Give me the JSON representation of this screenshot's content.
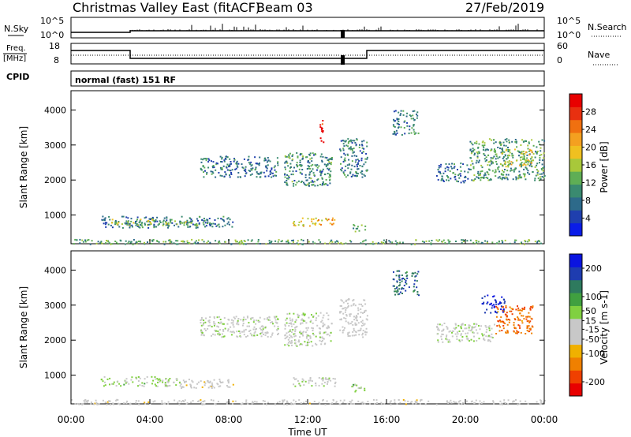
{
  "header": {
    "station": "Christmas Valley East (fitACF)",
    "beam": "Beam 03",
    "date": "27/Feb/2019"
  },
  "sky_panel": {
    "left_label": "N.Sky",
    "right_label": "N.Search",
    "tick_top": "10^5",
    "tick_bottom": "10^0"
  },
  "freq_panel": {
    "left_label_1": "Freq.",
    "left_label_2": "[MHz]",
    "right_label": "Nave",
    "left_ticks": [
      "18",
      "8"
    ],
    "right_ticks": [
      "60",
      "0"
    ]
  },
  "cpid": {
    "label": "CPID",
    "mode": "normal (fast) 151 RF"
  },
  "colors": {
    "power": [
      "#0a1ce8",
      "#1f3fae",
      "#2d6a8a",
      "#3a8a70",
      "#5fae55",
      "#a8c83a",
      "#f0c020",
      "#f4a020",
      "#f07010",
      "#e83010",
      "#e80000"
    ],
    "velocity": [
      "#e80000",
      "#f04000",
      "#f08000",
      "#f0b000",
      "#c8c8c8",
      "#c8c8c8",
      "#80d040",
      "#40a040",
      "#2e7a5e",
      "#1e3cb0",
      "#0a14e0"
    ]
  },
  "chart_data": [
    {
      "type": "heatmap",
      "name": "power",
      "ylabel": "Slant Range [km]",
      "xlim": [
        0,
        24
      ],
      "ylim": [
        180,
        4550
      ],
      "yticks": [
        1000,
        2000,
        3000,
        4000
      ],
      "colorbar": {
        "label": "Power [dB]",
        "range": [
          0,
          32
        ],
        "tick_values": [
          4,
          8,
          12,
          16,
          20,
          24,
          28
        ],
        "tick_labels": [
          "4",
          "8",
          "12",
          "16",
          "20",
          "24",
          "28"
        ]
      },
      "regions": [
        {
          "t0": 1.5,
          "t1": 8.2,
          "r0": 650,
          "r1": 980,
          "v": 8
        },
        {
          "t0": 2.0,
          "t1": 6.5,
          "r0": 720,
          "r1": 900,
          "v": 14
        },
        {
          "t0": 11.2,
          "t1": 13.4,
          "r0": 700,
          "r1": 950,
          "v": 20
        },
        {
          "t0": 14.2,
          "t1": 14.9,
          "r0": 550,
          "r1": 750,
          "v": 10
        },
        {
          "t0": 6.5,
          "t1": 10.5,
          "r0": 2100,
          "r1": 2700,
          "v": 8
        },
        {
          "t0": 10.8,
          "t1": 13.2,
          "r0": 1850,
          "r1": 2800,
          "v": 10
        },
        {
          "t0": 13.6,
          "t1": 15.0,
          "r0": 2100,
          "r1": 3200,
          "v": 9
        },
        {
          "t0": 16.3,
          "t1": 17.6,
          "r0": 3300,
          "r1": 4000,
          "v": 9
        },
        {
          "t0": 18.5,
          "t1": 20.2,
          "r0": 1950,
          "r1": 2500,
          "v": 8
        },
        {
          "t0": 20.2,
          "t1": 24.0,
          "r0": 2000,
          "r1": 3200,
          "v": 11
        },
        {
          "t0": 21.8,
          "t1": 23.4,
          "r0": 2400,
          "r1": 2900,
          "v": 18
        },
        {
          "t0": 0.0,
          "t1": 24.0,
          "r0": 180,
          "r1": 320,
          "v": 12
        },
        {
          "t0": 12.6,
          "t1": 12.8,
          "r0": 3100,
          "r1": 3750,
          "v": 30
        }
      ]
    },
    {
      "type": "heatmap",
      "name": "velocity",
      "xlabel": "Time UT",
      "ylabel": "Slant Range [km]",
      "xlim": [
        0,
        24
      ],
      "xticks": [
        "00:00",
        "04:00",
        "08:00",
        "12:00",
        "16:00",
        "20:00",
        "00:00"
      ],
      "ylim": [
        180,
        4550
      ],
      "yticks": [
        1000,
        2000,
        3000,
        4000
      ],
      "colorbar": {
        "label": "Velocity [m s-1]",
        "range": [
          -250,
          250
        ],
        "tick_values": [
          -200,
          -100,
          -50,
          -15,
          15,
          50,
          100,
          200
        ],
        "tick_labels": [
          "-200",
          "-100",
          "-50",
          "-15",
          "15",
          "50",
          "100",
          "200"
        ]
      },
      "regions": [
        {
          "t0": 1.5,
          "t1": 5.5,
          "r0": 700,
          "r1": 980,
          "v": 30
        },
        {
          "t0": 5.5,
          "t1": 8.2,
          "r0": 650,
          "r1": 900,
          "v": -40
        },
        {
          "t0": 11.2,
          "t1": 13.4,
          "r0": 700,
          "r1": 950,
          "v": 0
        },
        {
          "t0": 14.2,
          "t1": 14.9,
          "r0": 550,
          "r1": 750,
          "v": 30
        },
        {
          "t0": 6.5,
          "t1": 10.5,
          "r0": 2100,
          "r1": 2700,
          "v": 0
        },
        {
          "t0": 10.8,
          "t1": 13.2,
          "r0": 1850,
          "r1": 2800,
          "v": 0
        },
        {
          "t0": 13.6,
          "t1": 15.0,
          "r0": 2100,
          "r1": 3200,
          "v": -20
        },
        {
          "t0": 16.3,
          "t1": 17.6,
          "r0": 3300,
          "r1": 4000,
          "v": 150
        },
        {
          "t0": 18.5,
          "t1": 21.5,
          "r0": 1950,
          "r1": 2500,
          "v": 0
        },
        {
          "t0": 21.5,
          "t1": 23.4,
          "r0": 2200,
          "r1": 3000,
          "v": -150
        },
        {
          "t0": 20.8,
          "t1": 22.0,
          "r0": 2800,
          "r1": 3300,
          "v": 200
        },
        {
          "t0": 0.0,
          "t1": 24.0,
          "r0": 180,
          "r1": 320,
          "v": -30
        }
      ]
    }
  ]
}
